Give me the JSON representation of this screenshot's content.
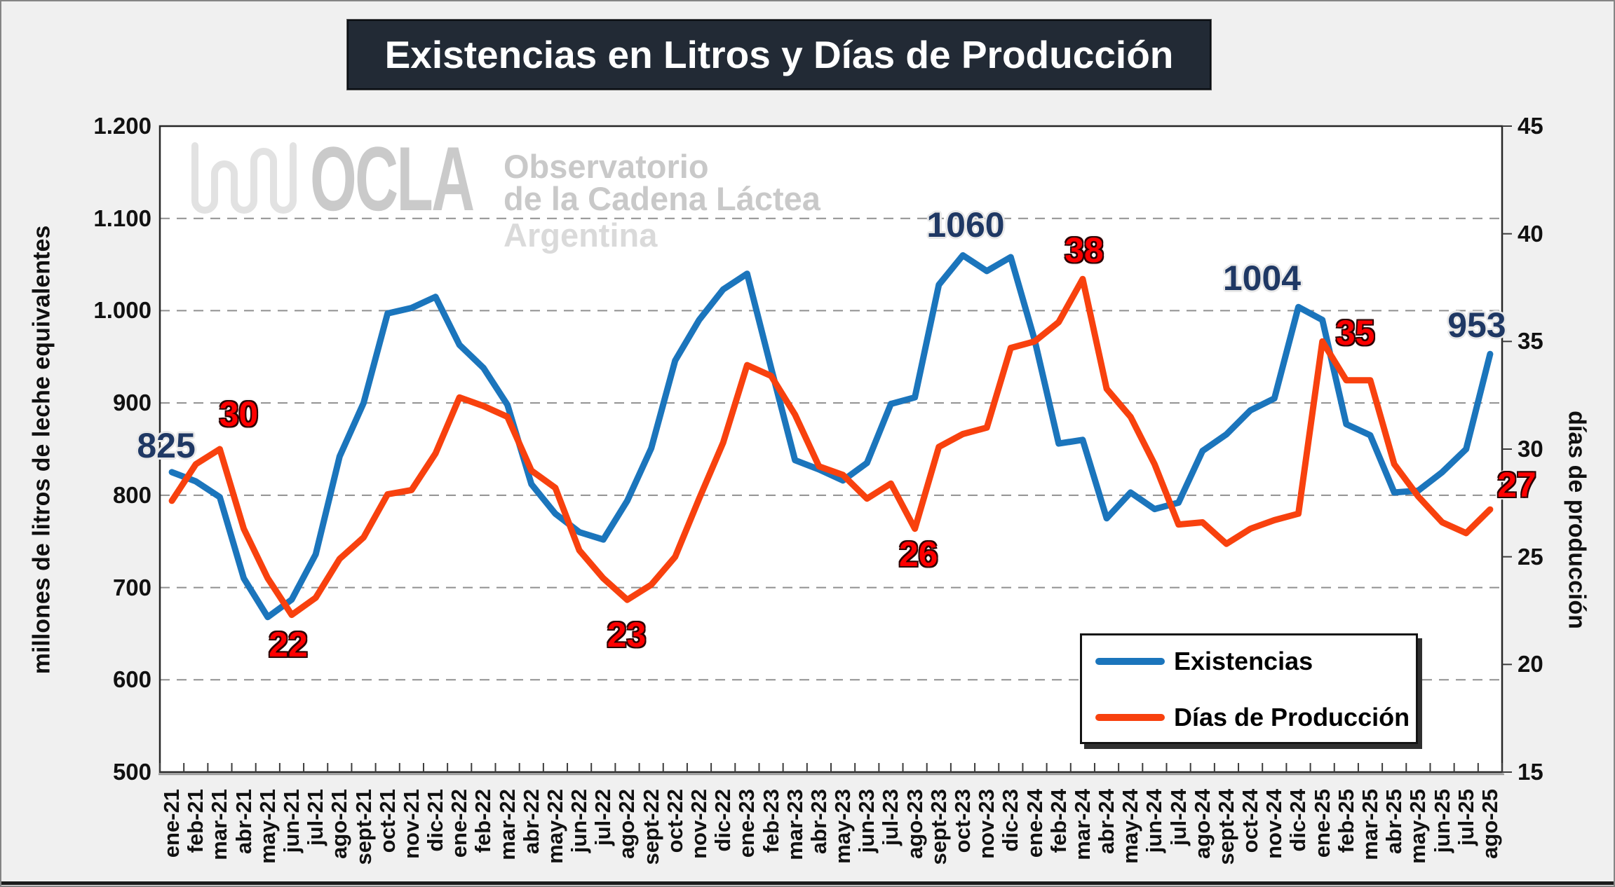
{
  "title": "Existencias en Litros y Días de Producción",
  "watermark": {
    "logo_text": "OCLA",
    "line1": "Observatorio",
    "line2": "de la Cadena Láctea",
    "line3": "Argentina"
  },
  "legend": {
    "position": "bottom-right-inside",
    "entries": [
      {
        "label": "Existencias",
        "color": "#1B75BC"
      },
      {
        "label": "Días de Producción",
        "color": "#F8410E"
      }
    ]
  },
  "chart_data": {
    "type": "line",
    "title": "Existencias en Litros y Días de Producción",
    "ylabel_left": "millones de litros de leche equivalentes",
    "ylabel_right": "días de producción",
    "ylim_left": [
      500,
      1200
    ],
    "ylim_right": [
      15,
      45
    ],
    "yticks_left": [
      "1.200",
      "1.100",
      "1.000",
      "900",
      "800",
      "700",
      "600",
      "500"
    ],
    "yticks_left_values": [
      1200,
      1100,
      1000,
      900,
      800,
      700,
      600,
      500
    ],
    "yticks_right": [
      "45",
      "40",
      "35",
      "30",
      "25",
      "20",
      "15"
    ],
    "yticks_right_values": [
      45,
      40,
      35,
      30,
      25,
      20,
      15
    ],
    "grid": true,
    "categories": [
      "ene-21",
      "feb-21",
      "mar-21",
      "abr-21",
      "may-21",
      "jun-21",
      "jul-21",
      "ago-21",
      "sept-21",
      "oct-21",
      "nov-21",
      "dic-21",
      "ene-22",
      "feb-22",
      "mar-22",
      "abr-22",
      "may-22",
      "jun-22",
      "jul-22",
      "ago-22",
      "sept-22",
      "oct-22",
      "nov-22",
      "dic-22",
      "ene-23",
      "feb-23",
      "mar-23",
      "abr-23",
      "may-23",
      "jun-23",
      "jul-23",
      "ago-23",
      "sept-23",
      "oct-23",
      "nov-23",
      "dic-23",
      "ene-24",
      "feb-24",
      "mar-24",
      "abr-24",
      "may-24",
      "jun-24",
      "jul-24",
      "ago-24",
      "sept-24",
      "oct-24",
      "nov-24",
      "dic-24",
      "ene-25",
      "feb-25",
      "mar-25",
      "abr-25",
      "may-25",
      "jun-25",
      "jul-25",
      "ago-25"
    ],
    "series": [
      {
        "name": "Existencias",
        "axis": "left",
        "color": "#1B75BC",
        "values": [
          825,
          815,
          798,
          710,
          668,
          687,
          736,
          842,
          900,
          997,
          1003,
          1015,
          963,
          938,
          898,
          812,
          780,
          760,
          752,
          794,
          851,
          946,
          990,
          1023,
          1040,
          938,
          838,
          828,
          816,
          835,
          899,
          906,
          1028,
          1060,
          1043,
          1058,
          968,
          856,
          860,
          775,
          803,
          785,
          792,
          848,
          866,
          892,
          905,
          1004,
          990,
          877,
          865,
          803,
          805,
          825,
          850,
          953
        ]
      },
      {
        "name": "Días de Producción",
        "axis": "right",
        "color": "#F8410E",
        "values": [
          27.6,
          29.3,
          30,
          26.3,
          24,
          22.3,
          23.1,
          24.9,
          25.9,
          27.9,
          28.1,
          29.8,
          32.4,
          32,
          31.5,
          29,
          28.2,
          25.3,
          24,
          23,
          23.7,
          25,
          27.7,
          30.3,
          33.9,
          33.4,
          31.6,
          29.2,
          28.8,
          27.7,
          28.4,
          26.3,
          30.1,
          30.7,
          31,
          34.7,
          35,
          35.9,
          37.9,
          32.8,
          31.5,
          29.3,
          26.5,
          26.6,
          25.6,
          26.3,
          26.7,
          27,
          35,
          33.2,
          33.2,
          29.3,
          27.8,
          26.6,
          26.1,
          27.2
        ]
      }
    ],
    "annotations": [
      {
        "text": "825",
        "series": "Existencias",
        "category": "ene-21"
      },
      {
        "text": "30",
        "series": "Días de Producción",
        "category": "mar-21"
      },
      {
        "text": "22",
        "series": "Días de Producción",
        "category": "jun-21"
      },
      {
        "text": "23",
        "series": "Días de Producción",
        "category": "ago-22"
      },
      {
        "text": "26",
        "series": "Días de Producción",
        "category": "ago-23"
      },
      {
        "text": "1060",
        "series": "Existencias",
        "category": "oct-23"
      },
      {
        "text": "38",
        "series": "Días de Producción",
        "category": "mar-24"
      },
      {
        "text": "1004",
        "series": "Existencias",
        "category": "dic-24"
      },
      {
        "text": "35",
        "series": "Días de Producción",
        "category": "ene-25"
      },
      {
        "text": "953",
        "series": "Existencias",
        "category": "ago-25"
      },
      {
        "text": "27",
        "series": "Días de Producción",
        "category": "ago-25"
      }
    ],
    "colors": {
      "label_blue": "#1F3864",
      "label_red": "#FF0000",
      "gridline": "#909090",
      "plot_border": "#262626",
      "title_bg": "#222A35",
      "page_bg": "#F0F0F0"
    }
  }
}
